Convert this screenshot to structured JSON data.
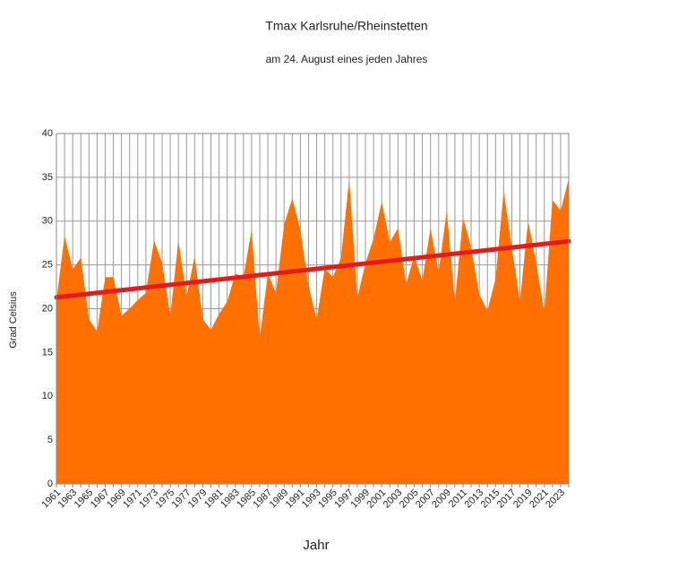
{
  "chart_data": {
    "type": "area",
    "title": "Tmax Karlsruhe/Rheinstetten",
    "subtitle": "am 24. August eines jeden Jahres",
    "x_label": "Jahr",
    "y_label": "Grad Celsius",
    "categories": [
      "1961",
      null,
      "1963",
      null,
      "1965",
      null,
      "1967",
      null,
      "1969",
      null,
      "1971",
      null,
      "1973",
      null,
      "1975",
      null,
      "1977",
      null,
      "1979",
      null,
      "1981",
      null,
      "1983",
      null,
      "1985",
      null,
      "1987",
      null,
      "1989",
      null,
      "1991",
      null,
      "1993",
      null,
      "1995",
      null,
      "1997",
      null,
      "1999",
      null,
      "2001",
      null,
      "2003",
      null,
      "2005",
      null,
      "2007",
      null,
      "2009",
      null,
      "2011",
      null,
      "2013",
      null,
      "2015",
      null,
      "2017",
      null,
      "2019",
      null,
      "2021",
      null,
      "2023",
      null
    ],
    "values": [
      21,
      28.3,
      24.5,
      25.8,
      18.8,
      17.4,
      23.6,
      23.6,
      19.2,
      20,
      21,
      21.8,
      27.8,
      25.2,
      19.2,
      27.8,
      21.4,
      26,
      18.8,
      17.6,
      19.4,
      20.8,
      24,
      23.6,
      29,
      16.6,
      24,
      21.8,
      29.6,
      32.6,
      29,
      22.6,
      18.8,
      24.6,
      23.6,
      25.8,
      34.8,
      21.2,
      25.2,
      28,
      32.2,
      27.6,
      29.2,
      22.8,
      26,
      23.2,
      29.2,
      24.2,
      31.2,
      20.8,
      30.4,
      27,
      21.6,
      19.8,
      23.4,
      33.4,
      27,
      20.8,
      30,
      25.2,
      19.6,
      32.4,
      31.2,
      34.8
    ],
    "color": "#ff7000",
    "trend": {
      "color": "#e61a1a",
      "values": [
        21.3,
        27.7
      ]
    },
    "ylim": [
      0,
      40
    ],
    "yticks": [
      0,
      5,
      10,
      15,
      20,
      25,
      30,
      35,
      40
    ],
    "grid": true
  }
}
